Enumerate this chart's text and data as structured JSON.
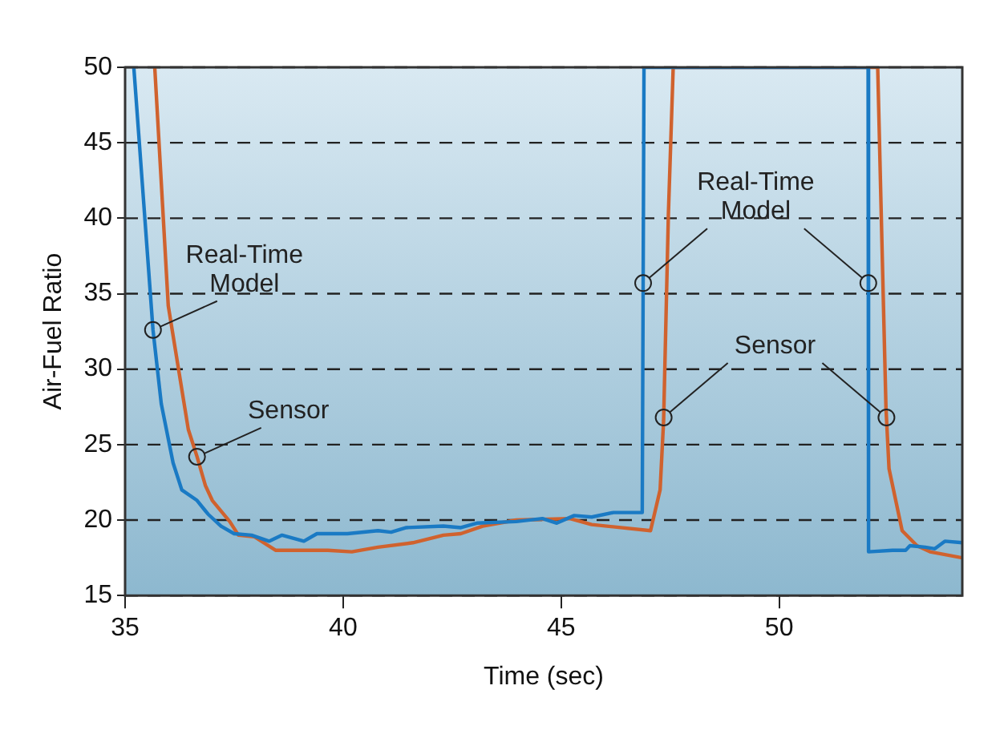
{
  "chart_data": {
    "type": "line",
    "xlabel": "Time (sec)",
    "ylabel": "Air-Fuel Ratio",
    "xlim": [
      35,
      54.2
    ],
    "xticks": [
      35,
      40,
      45,
      50
    ],
    "ylim": [
      15,
      50
    ],
    "yticks": [
      15,
      20,
      25,
      30,
      35,
      40,
      45,
      50
    ],
    "grid": "y",
    "line_style": "solid",
    "marker": "none",
    "series": [
      {
        "color": "#1a7ac4",
        "x": [
          35.2,
          35.64,
          35.83,
          36.1,
          36.3,
          36.65,
          36.9,
          37.2,
          37.5,
          37.9,
          38.3,
          38.6,
          39.1,
          39.4,
          40.1,
          40.8,
          41.1,
          41.45,
          42.3,
          42.7,
          43.07,
          43.97,
          44.57,
          44.9,
          45.3,
          45.7,
          46.2,
          46.86,
          46.9,
          52.04,
          52.05,
          52.6,
          52.9,
          53.0,
          53.35,
          53.57,
          53.8,
          54.2
        ],
        "values": [
          50,
          32.6,
          27.7,
          23.8,
          22,
          21.3,
          20.4,
          19.6,
          19.1,
          19,
          18.6,
          19,
          18.6,
          19.1,
          19.1,
          19.3,
          19.2,
          19.5,
          19.6,
          19.5,
          19.8,
          19.9,
          20.1,
          19.8,
          20.3,
          20.2,
          20.5,
          20.5,
          50,
          50,
          17.9,
          18,
          18,
          18.3,
          18.2,
          18.1,
          18.6,
          18.5
        ]
      },
      {
        "color": "#d0622e",
        "x": [
          35.68,
          35.99,
          36.45,
          36.65,
          36.84,
          37.0,
          37.4,
          37.6,
          37.96,
          38.45,
          39.0,
          39.65,
          40.2,
          40.8,
          41.6,
          42.3,
          42.7,
          43.2,
          43.97,
          45.2,
          45.7,
          47.05,
          47.27,
          47.35,
          47.46,
          47.57,
          52.26,
          52.37,
          52.45,
          52.52,
          52.82,
          53.16,
          53.46,
          54.2
        ],
        "values": [
          50,
          34.2,
          26,
          24.2,
          22.3,
          21.3,
          19.9,
          19,
          18.9,
          18,
          18,
          18,
          17.9,
          18.2,
          18.5,
          19,
          19.1,
          19.6,
          20,
          20.1,
          19.7,
          19.3,
          22,
          26.6,
          40.3,
          50,
          50,
          36.8,
          27.4,
          23.4,
          19.3,
          18.3,
          17.9,
          17.5
        ]
      }
    ],
    "annotations": [
      {
        "text": "Real-Time Model",
        "x": 35.64,
        "y": 32.6
      },
      {
        "text": "Sensor",
        "x": 36.65,
        "y": 24.2
      },
      {
        "text": "Real-Time Model",
        "x": 46.88,
        "y": 35.7
      },
      {
        "text": "Sensor",
        "x": 47.36,
        "y": 26.8
      }
    ]
  }
}
